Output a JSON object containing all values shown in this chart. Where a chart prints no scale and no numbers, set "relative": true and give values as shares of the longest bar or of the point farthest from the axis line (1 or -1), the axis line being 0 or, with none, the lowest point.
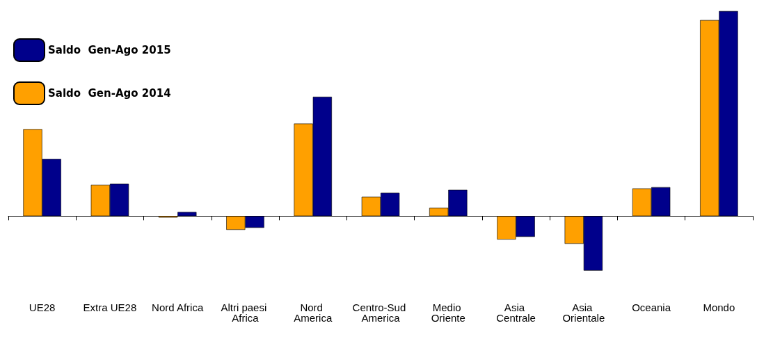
{
  "chart_data": {
    "type": "bar",
    "relative": true,
    "categories": [
      "UE28",
      "Extra UE28",
      "Nord Africa",
      "Altri paesi Africa",
      "Nord America",
      "Centro-Sud America",
      "Medio Oriente",
      "Asia Centrale",
      "Asia Orientale",
      "Oceania",
      "Mondo"
    ],
    "series": [
      {
        "name": "Saldo  Gen-Ago 2014",
        "color": "#ffa000",
        "values": [
          0.424,
          0.152,
          -0.007,
          -0.067,
          0.451,
          0.094,
          0.04,
          -0.114,
          -0.135,
          0.135,
          0.956
        ]
      },
      {
        "name": "Saldo  Gen-Ago 2015",
        "color": "#00008b",
        "values": [
          0.279,
          0.158,
          0.02,
          -0.057,
          0.582,
          0.114,
          0.128,
          -0.101,
          -0.266,
          0.141,
          1
        ]
      }
    ],
    "legend": "top left"
  }
}
